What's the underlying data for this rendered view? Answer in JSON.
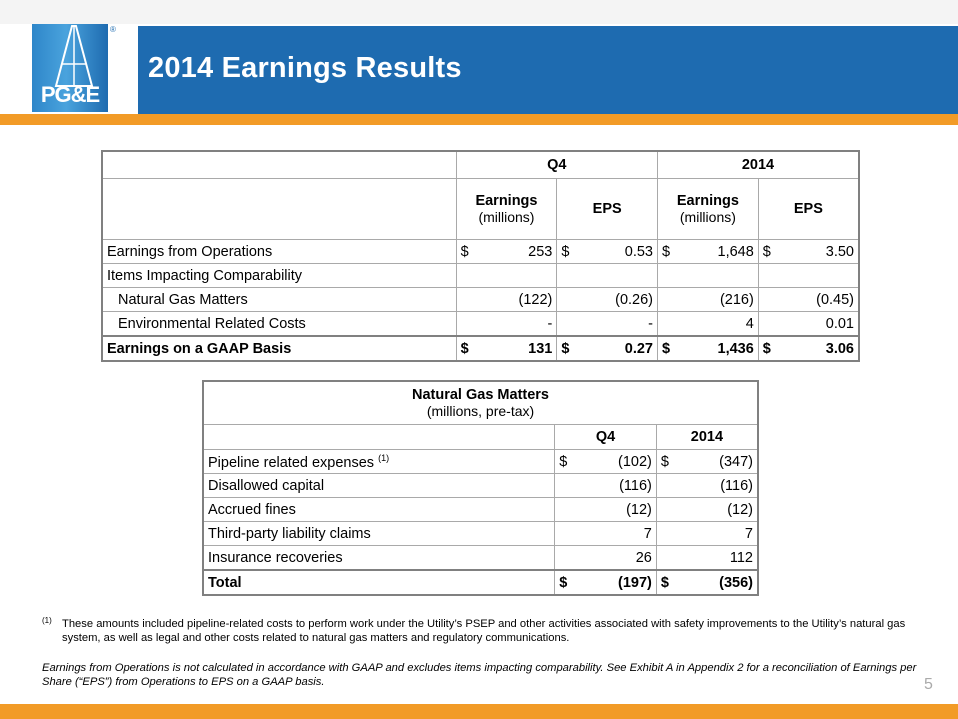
{
  "header": {
    "title": "2014 Earnings Results",
    "logo_text": "PG&E",
    "logo_reg": "®"
  },
  "colors": {
    "header_blue": "#1e6bb0",
    "accent_orange": "#f29b27"
  },
  "earnings_table": {
    "group_headers": [
      "Q4",
      "2014"
    ],
    "col_labels": {
      "q4_earnings": "Earnings",
      "q4_earnings_unit": "(millions)",
      "q4_eps": "EPS",
      "y_earnings": "Earnings",
      "y_earnings_unit": "(millions)",
      "y_eps": "EPS"
    },
    "currency": "$",
    "rows": [
      {
        "label": "Earnings from Operations",
        "values": [
          "253",
          "0.53",
          "1,648",
          "3.50"
        ]
      },
      {
        "label": "Items Impacting Comparability",
        "values": [
          "",
          "",
          "",
          ""
        ]
      },
      {
        "label": "Natural Gas Matters",
        "values": [
          "(122)",
          "(0.26)",
          "(216)",
          "(0.45)"
        ]
      },
      {
        "label": "Environmental Related Costs",
        "values": [
          "-",
          "-",
          "4",
          "0.01"
        ]
      },
      {
        "label": "Earnings on a GAAP Basis",
        "values": [
          "131",
          "0.27",
          "1,436",
          "3.06"
        ]
      }
    ]
  },
  "ngm_table": {
    "title": "Natural Gas Matters",
    "subtitle": "(millions, pre-tax)",
    "col_labels": [
      "Q4",
      "2014"
    ],
    "rows": [
      {
        "label": "Pipeline related expenses",
        "sup": "(1)",
        "values": [
          "(102)",
          "(347)"
        ]
      },
      {
        "label": "Disallowed capital",
        "values": [
          "(116)",
          "(116)"
        ]
      },
      {
        "label": "Accrued fines",
        "values": [
          "(12)",
          "(12)"
        ]
      },
      {
        "label": "Third-party liability claims",
        "values": [
          "7",
          "7"
        ]
      },
      {
        "label": "Insurance recoveries",
        "values": [
          "26",
          "112"
        ]
      },
      {
        "label": "Total",
        "values": [
          "(197)",
          "(356)"
        ]
      }
    ]
  },
  "footnote": {
    "mark": "(1)",
    "text": "These amounts included pipeline-related costs to perform work under the Utility’s PSEP and other activities associated with safety improvements to the Utility’s natural gas system, as well as legal and other costs related to natural gas matters and regulatory communications."
  },
  "note": "Earnings from Operations is not calculated in accordance with GAAP and excludes items impacting comparability.  See Exhibit A in Appendix 2 for a reconciliation of Earnings per Share (“EPS”) from Operations to EPS on a GAAP basis.",
  "page_number": "5"
}
